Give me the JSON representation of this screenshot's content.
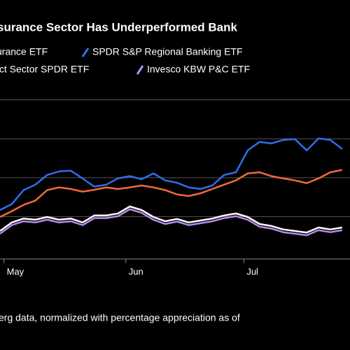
{
  "chart_data": {
    "type": "line",
    "title": "surance Sector Has Underperformed Bank",
    "footnote": "erg data, normalized with percentage appreciation as of",
    "x": [
      0,
      3,
      6,
      9,
      12,
      15,
      18,
      21,
      24,
      27,
      30,
      33,
      36,
      39,
      42,
      45,
      48,
      51,
      54,
      57,
      60,
      63,
      66,
      69,
      72,
      75,
      78,
      81,
      84,
      87
    ],
    "xlim": [
      0,
      89
    ],
    "xticks": [
      {
        "value": 1,
        "label": "May"
      },
      {
        "value": 32,
        "label": "Jun"
      },
      {
        "value": 62,
        "label": "Jul"
      }
    ],
    "ylim": [
      0,
      4.3
    ],
    "ygrid": [
      1,
      2,
      3,
      4
    ],
    "series": [
      {
        "name": "surance ETF",
        "color": "#f26b38",
        "values": [
          0.99,
          1.14,
          1.3,
          1.41,
          1.68,
          1.75,
          1.71,
          1.64,
          1.69,
          1.75,
          1.71,
          1.75,
          1.8,
          1.75,
          1.68,
          1.57,
          1.53,
          1.6,
          1.71,
          1.82,
          1.93,
          2.11,
          2.14,
          2.04,
          1.98,
          1.93,
          1.86,
          1.98,
          2.14,
          2.2
        ]
      },
      {
        "name": "SPDR S&P Regional Banking ETF",
        "color": "#2f6fe8",
        "values": [
          1.17,
          1.32,
          1.68,
          1.82,
          2.07,
          2.16,
          2.18,
          1.98,
          1.77,
          1.82,
          1.98,
          2.04,
          1.96,
          2.11,
          1.93,
          1.87,
          1.75,
          1.71,
          1.8,
          2.07,
          2.14,
          2.7,
          2.92,
          2.88,
          2.97,
          2.99,
          2.7,
          3.01,
          2.97,
          2.74
        ]
      },
      {
        "name": "lect Sector SPDR ETF",
        "color": "#ffffff",
        "values": [
          0.63,
          0.85,
          0.95,
          0.92,
          0.99,
          0.92,
          0.95,
          0.85,
          1.03,
          1.03,
          1.08,
          1.26,
          1.17,
          0.99,
          0.88,
          0.94,
          0.85,
          0.9,
          0.95,
          1.03,
          1.08,
          0.99,
          0.81,
          0.76,
          0.67,
          0.63,
          0.59,
          0.72,
          0.67,
          0.72
        ]
      },
      {
        "name": "Invesco KBW P&C ETF",
        "color": "#b48cf0",
        "values": [
          0.56,
          0.78,
          0.88,
          0.85,
          0.92,
          0.85,
          0.88,
          0.78,
          0.96,
          0.96,
          1.01,
          1.19,
          1.1,
          0.92,
          0.81,
          0.87,
          0.78,
          0.83,
          0.88,
          0.96,
          1.01,
          0.92,
          0.74,
          0.69,
          0.6,
          0.56,
          0.52,
          0.65,
          0.6,
          0.65
        ]
      }
    ]
  }
}
